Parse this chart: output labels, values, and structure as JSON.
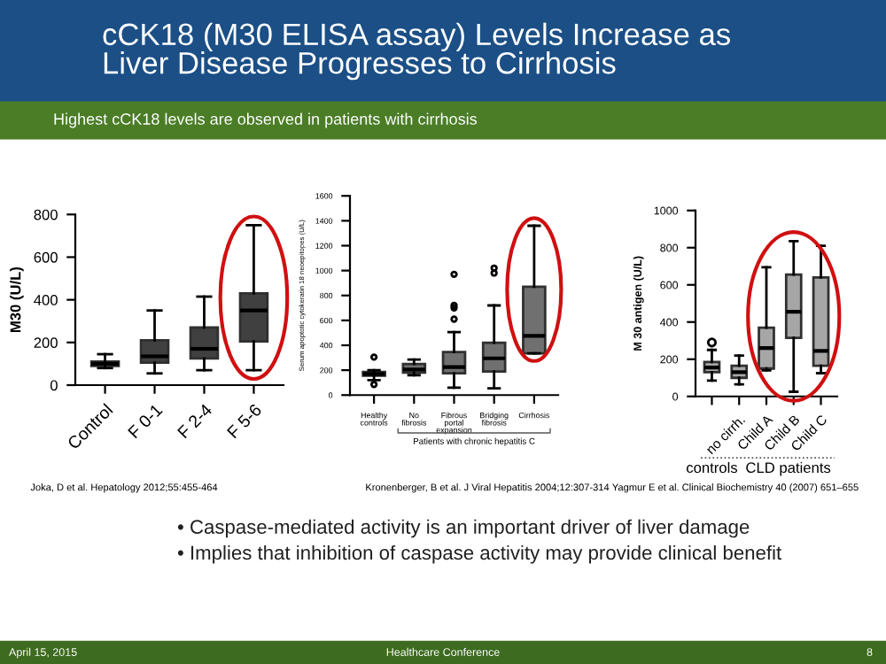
{
  "chart_data": [
    {
      "type": "other",
      "title": "cCK18 (M30 ELISA assay) Levels Increase as Liver Disease Progresses to Cirrhosis",
      "subtitle": "Highest cCK18 levels are observed in patients with cirrhosis"
    },
    {
      "type": "box",
      "ylabel": "M30 (U/L)",
      "categories": [
        "Control",
        "F 0-1",
        "F 2-4",
        "F 5-6"
      ],
      "colors": [
        "#404040",
        "#404040",
        "#404040",
        "#404040"
      ],
      "ylim": [
        0,
        800
      ],
      "yticks": [
        0,
        200,
        400,
        600,
        800
      ],
      "grid": false,
      "boxes": [
        {
          "low": 80,
          "q1": 90,
          "median": 100,
          "q3": 110,
          "high": 145
        },
        {
          "low": 55,
          "q1": 105,
          "median": 135,
          "q3": 210,
          "high": 350
        },
        {
          "low": 70,
          "q1": 125,
          "median": 170,
          "q3": 270,
          "high": 415
        },
        {
          "low": 70,
          "q1": 205,
          "median": 350,
          "q3": 430,
          "high": 750
        }
      ],
      "annotations": [
        "Joka, D et al. Hepatology 2012;55:455-464"
      ]
    },
    {
      "type": "box",
      "ylabel": "Serum apoptotic cytokeratin 18 neoepitopes (U/L)",
      "categories": [
        "Healthy\ncontrols",
        "No\nfibrosis",
        "Fibrous\nportal\nexpansion",
        "Bridging\nfibrosis",
        "Cirrhosis"
      ],
      "colors": [
        "#707070",
        "#707070",
        "#707070",
        "#707070",
        "#707070"
      ],
      "ylim": [
        0,
        1600
      ],
      "yticks": [
        0,
        200,
        400,
        600,
        800,
        1000,
        1200,
        1400,
        1600
      ],
      "grid": false,
      "boxes": [
        {
          "low": 120,
          "q1": 155,
          "median": 170,
          "q3": 185,
          "high": 200,
          "outliers": [
            305,
            85
          ]
        },
        {
          "low": 160,
          "q1": 180,
          "median": 205,
          "q3": 250,
          "high": 285
        },
        {
          "low": 60,
          "q1": 175,
          "median": 225,
          "q3": 345,
          "high": 505,
          "outliers": [
            610,
            700,
            720,
            970
          ]
        },
        {
          "low": 55,
          "q1": 190,
          "median": 295,
          "q3": 420,
          "high": 720,
          "outliers": [
            980,
            1020
          ]
        },
        {
          "low": 335,
          "q1": 335,
          "median": 475,
          "q3": 870,
          "high": 1360
        }
      ],
      "annotations": [
        "Patients with chronic hepatitis C",
        "Kronenberger, B et al. J Viral Hepatitis 2004;12:307-314"
      ]
    },
    {
      "type": "box",
      "ylabel": "M 30 antigen (U/L)",
      "categories": [
        null,
        "no cirrh.",
        "Child A",
        "Child B",
        "Child C"
      ],
      "colors": [
        "#a6a6a6",
        "#a6a6a6",
        "#a6a6a6",
        "#a6a6a6",
        "#a6a6a6"
      ],
      "ylim": [
        0,
        1000
      ],
      "yticks": [
        0,
        200,
        400,
        600,
        800,
        1000
      ],
      "grid": false,
      "boxes": [
        {
          "low": 85,
          "q1": 130,
          "median": 155,
          "q3": 185,
          "high": 250,
          "outliers": [
            290
          ]
        },
        {
          "low": 65,
          "q1": 100,
          "median": 130,
          "q3": 165,
          "high": 220
        },
        {
          "low": 140,
          "q1": 150,
          "median": 260,
          "q3": 370,
          "high": 695
        },
        {
          "low": 25,
          "q1": 315,
          "median": 455,
          "q3": 655,
          "high": 835
        },
        {
          "low": 125,
          "q1": 165,
          "median": 245,
          "q3": 640,
          "high": 810
        }
      ],
      "annotations": [
        "controls",
        "CLD patients",
        "Yagmur E et al. Clinical Biochemistry 40 (2007) 651–655"
      ]
    },
    {
      "type": "other",
      "annotations": [
        "• Caspase-mediated activity is an important driver of liver damage",
        "• Implies that inhibition of caspase activity may provide clinical benefit",
        "April 15, 2015",
        "Healthcare Conference",
        "8"
      ]
    }
  ]
}
